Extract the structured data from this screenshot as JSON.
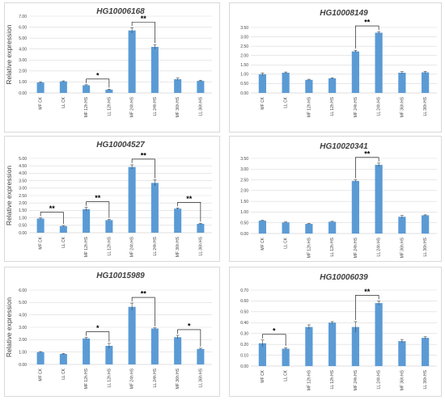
{
  "figure": {
    "ylabel": "Relative expression",
    "categories": [
      "MF CK",
      "LL CK",
      "MF 12h HS",
      "LL 12h HS",
      "MF 24h HS",
      "LL 24h HS",
      "MF 36h HS",
      "LL 36h HS"
    ],
    "bar_color": "#5b9bd5"
  },
  "chart_data": [
    {
      "type": "bar",
      "title": "HG10006168",
      "ylabel": "Relative expression",
      "categories": [
        "MF CK",
        "LL CK",
        "MF 12h HS",
        "LL 12h HS",
        "MF 24h HS",
        "LL 24h HS",
        "MF 36h HS",
        "LL 36h HS"
      ],
      "values": [
        0.95,
        1.05,
        0.7,
        0.3,
        5.7,
        4.2,
        1.25,
        1.1
      ],
      "errors": [
        0.05,
        0.05,
        0.05,
        0.04,
        0.25,
        0.2,
        0.1,
        0.06
      ],
      "ylim": [
        0,
        7
      ],
      "ytick_labels": [
        "0.00",
        "1.00",
        "2.00",
        "3.00",
        "4.00",
        "5.00",
        "6.00",
        "7.00"
      ],
      "significance": [
        {
          "from": 2,
          "to": 3,
          "label": "*"
        },
        {
          "from": 4,
          "to": 5,
          "label": "**"
        }
      ]
    },
    {
      "type": "bar",
      "title": "HG10008149",
      "categories": [
        "MF CK",
        "LL CK",
        "MF 12h HS",
        "LL 12h HS",
        "MF 24h HS",
        "LL 24h HS",
        "MF 36h HS",
        "LL 36h HS"
      ],
      "values": [
        1.0,
        1.08,
        0.7,
        0.78,
        2.22,
        3.22,
        1.08,
        1.1
      ],
      "errors": [
        0.07,
        0.04,
        0.03,
        0.03,
        0.06,
        0.06,
        0.06,
        0.05
      ],
      "ylim": [
        0,
        3.5
      ],
      "ytick_labels": [
        "0.00",
        "0.50",
        "1.00",
        "1.50",
        "2.00",
        "2.50",
        "3.00",
        "3.50"
      ],
      "significance": [
        {
          "from": 4,
          "to": 5,
          "label": "**"
        }
      ]
    },
    {
      "type": "bar",
      "title": "HG10004527",
      "ylabel": "Relative expression",
      "categories": [
        "MF CK",
        "LL CK",
        "MF 12h HS",
        "LL 12h HS",
        "MF 24h HS",
        "LL 24h HS",
        "MF 36h HS",
        "LL 36h HS"
      ],
      "values": [
        0.95,
        0.45,
        1.58,
        0.85,
        4.42,
        3.35,
        1.62,
        0.6
      ],
      "errors": [
        0.05,
        0.04,
        0.12,
        0.05,
        0.15,
        0.2,
        0.05,
        0.04
      ],
      "ylim": [
        0,
        5
      ],
      "ytick_labels": [
        "0.00",
        "0.50",
        "1.00",
        "1.50",
        "2.00",
        "2.50",
        "3.00",
        "3.50",
        "4.00",
        "4.50",
        "5.00"
      ],
      "significance": [
        {
          "from": 0,
          "to": 1,
          "label": "**"
        },
        {
          "from": 2,
          "to": 3,
          "label": "**"
        },
        {
          "from": 4,
          "to": 5,
          "label": "**"
        },
        {
          "from": 6,
          "to": 7,
          "label": "**"
        }
      ]
    },
    {
      "type": "bar",
      "title": "HG10020341",
      "categories": [
        "MF CK",
        "LL CK",
        "MF 12h HS",
        "LL 12h HS",
        "MF 24h HS",
        "LL 24h HS",
        "MF 36h HS",
        "LL 36h HS"
      ],
      "values": [
        0.6,
        0.52,
        0.45,
        0.55,
        2.45,
        3.2,
        0.78,
        0.85
      ],
      "errors": [
        0.02,
        0.02,
        0.02,
        0.02,
        0.05,
        0.08,
        0.06,
        0.02
      ],
      "ylim": [
        0,
        3.5
      ],
      "ytick_labels": [
        "0.00",
        "0.50",
        "1.00",
        "1.50",
        "2.00",
        "2.50",
        "3.00",
        "3.50"
      ],
      "significance": [
        {
          "from": 4,
          "to": 5,
          "label": "**"
        }
      ]
    },
    {
      "type": "bar",
      "title": "HG10015989",
      "ylabel": "Relative expression",
      "categories": [
        "MF CK",
        "LL CK",
        "MF 12h HS",
        "LL 12h HS",
        "MF 24h HS",
        "LL 24h HS",
        "MF 36h HS",
        "LL 36h HS"
      ],
      "values": [
        1.0,
        0.85,
        2.1,
        1.5,
        4.65,
        2.9,
        2.2,
        1.25
      ],
      "errors": [
        0.04,
        0.04,
        0.08,
        0.2,
        0.3,
        0.05,
        0.15,
        0.06
      ],
      "ylim": [
        0,
        6
      ],
      "ytick_labels": [
        "0.00",
        "1.00",
        "2.00",
        "3.00",
        "4.00",
        "5.00",
        "6.00"
      ],
      "significance": [
        {
          "from": 2,
          "to": 3,
          "label": "*"
        },
        {
          "from": 4,
          "to": 5,
          "label": "**"
        },
        {
          "from": 6,
          "to": 7,
          "label": "*"
        }
      ]
    },
    {
      "type": "bar",
      "title": "HG10006039",
      "categories": [
        "MF CK",
        "LL CK",
        "MF 12h HS",
        "LL 12h HS",
        "MF 24h HS",
        "LL 24h HS",
        "MF 36h HS",
        "LL 36h HS"
      ],
      "values": [
        0.21,
        0.16,
        0.36,
        0.4,
        0.36,
        0.58,
        0.23,
        0.26
      ],
      "errors": [
        0.03,
        0.01,
        0.02,
        0.01,
        0.05,
        0.02,
        0.015,
        0.01
      ],
      "ylim": [
        0,
        0.7
      ],
      "ytick_labels": [
        "0.00",
        "0.10",
        "0.20",
        "0.30",
        "0.40",
        "0.50",
        "0.60",
        "0.70"
      ],
      "significance": [
        {
          "from": 0,
          "to": 1,
          "label": "*"
        },
        {
          "from": 4,
          "to": 5,
          "label": "**"
        }
      ]
    }
  ]
}
